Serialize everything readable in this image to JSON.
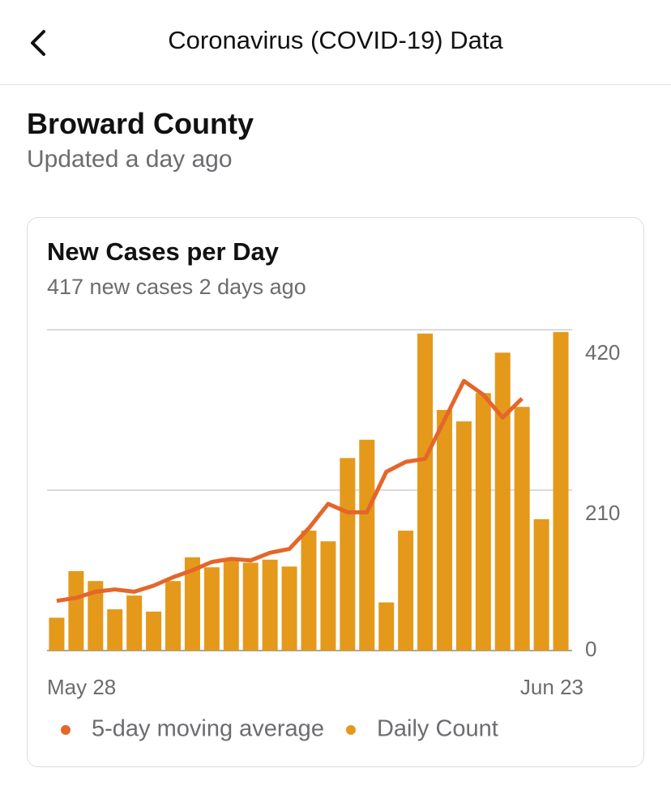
{
  "header": {
    "title": "Coronavirus (COVID-19) Data"
  },
  "location": {
    "name": "Broward County",
    "updated": "Updated a day ago"
  },
  "chart_data": {
    "type": "bar",
    "title": "New Cases per Day",
    "subtitle": "417 new cases 2 days ago",
    "categories": [
      "May 28",
      null,
      null,
      null,
      null,
      null,
      null,
      null,
      null,
      null,
      null,
      null,
      null,
      null,
      null,
      null,
      null,
      null,
      null,
      null,
      null,
      null,
      null,
      null,
      null,
      null,
      "Jun 23"
    ],
    "series": [
      {
        "name": "5-day moving average",
        "type": "line",
        "color": "#e4662a",
        "values": [
          65,
          69,
          77,
          80,
          77,
          85,
          96,
          105,
          116,
          120,
          118,
          128,
          133,
          160,
          192,
          181,
          181,
          234,
          247,
          251,
          302,
          353,
          335,
          305,
          330,
          null,
          null
        ]
      },
      {
        "name": "Daily Count",
        "type": "bar",
        "color": "#e4991b",
        "values": [
          43,
          104,
          91,
          54,
          72,
          51,
          91,
          122,
          109,
          118,
          115,
          119,
          110,
          157,
          143,
          252,
          276,
          63,
          157,
          415,
          315,
          300,
          337,
          390,
          319,
          172,
          417
        ]
      }
    ],
    "ylim": [
      0,
      420
    ],
    "yticks": [
      0,
      210,
      420
    ],
    "grid": true,
    "y_axis_side": "right",
    "legend": "bottom"
  }
}
